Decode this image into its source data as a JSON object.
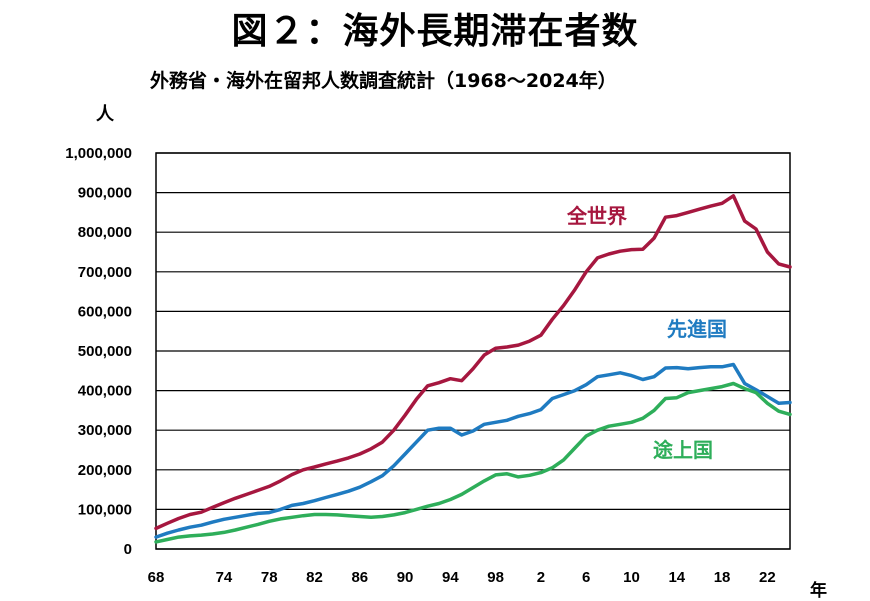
{
  "page": {
    "title": "図２：海外長期滞在者数",
    "subtitle": "外務省・海外在留邦人数調査統計（1968～2024年）",
    "y_unit": "人",
    "x_unit": "年"
  },
  "chart_data": {
    "type": "line",
    "title": "図２：海外長期滞在者数",
    "subtitle": "外務省・海外在留邦人数調査統計（1968～2024年）",
    "ylabel": "人",
    "xlabel": "年",
    "ylim": [
      0,
      1000000
    ],
    "xlim": [
      1968,
      2024
    ],
    "grid": true,
    "y_ticks": [
      0,
      100000,
      200000,
      300000,
      400000,
      500000,
      600000,
      700000,
      800000,
      900000,
      1000000
    ],
    "y_tick_labels": [
      "0",
      "100,000",
      "200,000",
      "300,000",
      "400,000",
      "500,000",
      "600,000",
      "700,000",
      "800,000",
      "900,000",
      "1,000,000"
    ],
    "x_ticks": [
      1968,
      1974,
      1978,
      1982,
      1986,
      1990,
      1994,
      1998,
      2002,
      2006,
      2010,
      2014,
      2018,
      2022
    ],
    "x_tick_labels": [
      "68",
      "74",
      "78",
      "82",
      "86",
      "90",
      "94",
      "98",
      "2",
      "6",
      "10",
      "14",
      "18",
      "22"
    ],
    "x": [
      1968,
      1969,
      1970,
      1971,
      1972,
      1973,
      1974,
      1975,
      1976,
      1977,
      1978,
      1979,
      1980,
      1981,
      1982,
      1983,
      1984,
      1985,
      1986,
      1987,
      1988,
      1989,
      1990,
      1991,
      1992,
      1993,
      1994,
      1995,
      1996,
      1997,
      1998,
      1999,
      2000,
      2001,
      2002,
      2003,
      2004,
      2005,
      2006,
      2007,
      2008,
      2009,
      2010,
      2011,
      2012,
      2013,
      2014,
      2015,
      2016,
      2017,
      2018,
      2019,
      2020,
      2021,
      2022,
      2023,
      2024
    ],
    "series": [
      {
        "name": "全世界",
        "color": "#a6173f",
        "values": [
          52000,
          65000,
          77000,
          87000,
          93000,
          105000,
          117000,
          128000,
          138000,
          148000,
          158000,
          172000,
          188000,
          200000,
          207000,
          215000,
          222000,
          230000,
          240000,
          253000,
          270000,
          300000,
          338000,
          378000,
          412000,
          420000,
          430000,
          425000,
          455000,
          490000,
          507000,
          510000,
          515000,
          525000,
          540000,
          580000,
          615000,
          655000,
          700000,
          735000,
          745000,
          752000,
          756000,
          757000,
          785000,
          838000,
          842000,
          850000,
          858000,
          866000,
          873000,
          892000,
          828000,
          808000,
          750000,
          720000,
          712000
        ]
      },
      {
        "name": "先進国",
        "color": "#1f7bc1",
        "values": [
          30000,
          40000,
          48000,
          55000,
          60000,
          68000,
          75000,
          80000,
          85000,
          90000,
          92000,
          100000,
          110000,
          115000,
          122000,
          130000,
          138000,
          146000,
          156000,
          170000,
          185000,
          210000,
          240000,
          270000,
          300000,
          305000,
          305000,
          288000,
          298000,
          315000,
          320000,
          325000,
          335000,
          342000,
          352000,
          380000,
          390000,
          400000,
          415000,
          435000,
          440000,
          445000,
          438000,
          428000,
          435000,
          457000,
          458000,
          455000,
          458000,
          460000,
          460000,
          466000,
          418000,
          402000,
          385000,
          368000,
          370000
        ]
      },
      {
        "name": "途上国",
        "color": "#2eae5a",
        "values": [
          18000,
          24000,
          30000,
          33000,
          35000,
          38000,
          42000,
          48000,
          55000,
          62000,
          70000,
          76000,
          80000,
          84000,
          87000,
          87000,
          86000,
          84000,
          82000,
          80000,
          82000,
          86000,
          92000,
          100000,
          108000,
          115000,
          125000,
          138000,
          155000,
          172000,
          187000,
          190000,
          182000,
          186000,
          193000,
          205000,
          225000,
          255000,
          285000,
          300000,
          310000,
          315000,
          320000,
          330000,
          350000,
          380000,
          382000,
          395000,
          400000,
          405000,
          410000,
          418000,
          405000,
          395000,
          368000,
          348000,
          340000
        ]
      }
    ]
  }
}
